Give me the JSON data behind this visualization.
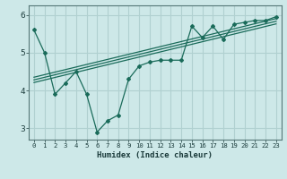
{
  "xlabel": "Humidex (Indice chaleur)",
  "background_color": "#cde8e8",
  "grid_color": "#b0d0d0",
  "line_color": "#1a6b5a",
  "xlim": [
    -0.5,
    23.5
  ],
  "ylim": [
    2.7,
    6.25
  ],
  "yticks": [
    3,
    4,
    5,
    6
  ],
  "xticks": [
    0,
    1,
    2,
    3,
    4,
    5,
    6,
    7,
    8,
    9,
    10,
    11,
    12,
    13,
    14,
    15,
    16,
    17,
    18,
    19,
    20,
    21,
    22,
    23
  ],
  "data_x": [
    0,
    1,
    2,
    3,
    4,
    5,
    6,
    7,
    8,
    9,
    10,
    11,
    12,
    13,
    14,
    15,
    16,
    17,
    18,
    19,
    20,
    21,
    22,
    23
  ],
  "data_y": [
    5.6,
    5.0,
    3.9,
    4.2,
    4.5,
    3.9,
    2.9,
    3.2,
    3.35,
    4.3,
    4.65,
    4.75,
    4.8,
    4.8,
    4.8,
    5.7,
    5.4,
    5.7,
    5.35,
    5.75,
    5.8,
    5.85,
    5.85,
    5.95
  ],
  "reg_lines": [
    [
      [
        0,
        23
      ],
      [
        4.35,
        5.9
      ]
    ],
    [
      [
        0,
        23
      ],
      [
        4.28,
        5.83
      ]
    ],
    [
      [
        0,
        23
      ],
      [
        4.21,
        5.76
      ]
    ]
  ]
}
